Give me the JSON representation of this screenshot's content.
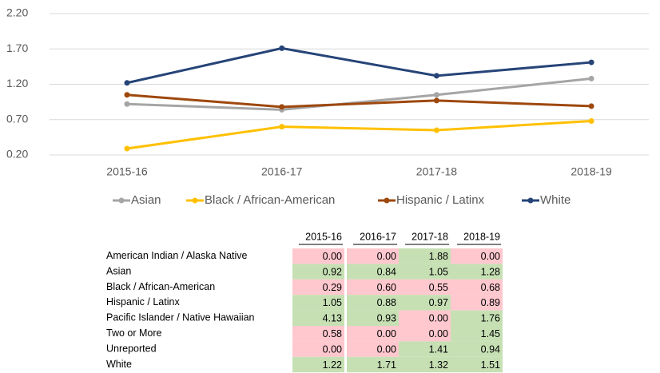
{
  "chart_data": {
    "type": "line",
    "categories": [
      "2015-16",
      "2016-17",
      "2017-18",
      "2018-19"
    ],
    "series": [
      {
        "name": "Asian",
        "color": "#a5a5a5",
        "values": [
          0.92,
          0.84,
          1.05,
          1.28
        ]
      },
      {
        "name": "Black / African-American",
        "color": "#ffc000",
        "values": [
          0.29,
          0.6,
          0.55,
          0.68
        ]
      },
      {
        "name": "Hispanic / Latinx",
        "color": "#9e480e",
        "values": [
          1.05,
          0.88,
          0.97,
          0.89
        ]
      },
      {
        "name": "White",
        "color": "#264478",
        "values": [
          1.22,
          1.71,
          1.32,
          1.51
        ]
      }
    ],
    "ylim": [
      0.2,
      2.2
    ],
    "yticks": [
      {
        "value": 0.2,
        "label": "0.20"
      },
      {
        "value": 0.7,
        "label": "0.70"
      },
      {
        "value": 1.2,
        "label": "1.20"
      },
      {
        "value": 1.7,
        "label": "1.70"
      },
      {
        "value": 2.2,
        "label": "2.20"
      }
    ],
    "grid": true,
    "legend": "bottom"
  },
  "table": {
    "header": [
      "2015-16",
      "2016-17",
      "2017-18",
      "2018-19"
    ],
    "rows": [
      [
        "American Indian / Alaska Native",
        "0.00",
        "0.00",
        "1.88",
        "0.00"
      ],
      [
        "Asian",
        "0.92",
        "0.84",
        "1.05",
        "1.28"
      ],
      [
        "Black / African-American",
        "0.29",
        "0.60",
        "0.55",
        "0.68"
      ],
      [
        "Hispanic / Latinx",
        "1.05",
        "0.88",
        "0.97",
        "0.89"
      ],
      [
        "Pacific Islander / Native Hawaiian",
        "4.13",
        "0.93",
        "0.00",
        "1.76"
      ],
      [
        "Two or More",
        "0.58",
        "0.00",
        "0.00",
        "1.45"
      ],
      [
        "Unreported",
        "0.00",
        "0.00",
        "1.41",
        "0.94"
      ],
      [
        "White",
        "1.22",
        "1.71",
        "1.32",
        "1.51"
      ]
    ],
    "cell_fills": [
      [
        "#ffc7ce",
        "#ffc7ce",
        "#c6e0b4",
        "#ffc7ce"
      ],
      [
        "#c6e0b4",
        "#c6e0b4",
        "#c6e0b4",
        "#c6e0b4"
      ],
      [
        "#ffc7ce",
        "#ffc7ce",
        "#ffc7ce",
        "#ffc7ce"
      ],
      [
        "#c6e0b4",
        "#c6e0b4",
        "#c6e0b4",
        "#ffc7ce"
      ],
      [
        "#c6e0b4",
        "#c6e0b4",
        "#ffc7ce",
        "#c6e0b4"
      ],
      [
        "#ffc7ce",
        "#ffc7ce",
        "#ffc7ce",
        "#c6e0b4"
      ],
      [
        "#ffc7ce",
        "#ffc7ce",
        "#c6e0b4",
        "#c6e0b4"
      ],
      [
        "#c6e0b4",
        "#c6e0b4",
        "#c6e0b4",
        "#c6e0b4"
      ]
    ]
  }
}
